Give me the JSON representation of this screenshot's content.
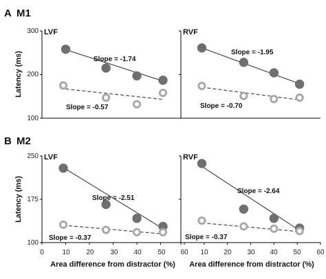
{
  "figure": {
    "xlabel": "Area difference from distractor (%)",
    "ylabel": "Latency (ms)",
    "x_ticks": [
      "0",
      "10",
      "20",
      "30",
      "40",
      "50",
      "60"
    ],
    "colors": {
      "filled": "#6f6f6f",
      "open_ring": "#a9a9a9",
      "line": "#555555",
      "axis": "#000000"
    }
  },
  "rows": [
    {
      "letter": "A",
      "title": "M1",
      "y_ticks": [
        "300",
        "200",
        "100"
      ]
    },
    {
      "letter": "B",
      "title": "M2",
      "y_ticks": [
        "250",
        "175",
        "100"
      ]
    }
  ],
  "chart_data": [
    {
      "type": "scatter",
      "panel": "A M1 LVF",
      "title": "LVF",
      "xlim": [
        0,
        60
      ],
      "ylim": [
        100,
        300
      ],
      "series": [
        {
          "marker": "filled",
          "line": "solid",
          "x": [
            10,
            27,
            40,
            51
          ],
          "y": [
            258,
            215,
            197,
            187
          ],
          "fit": [
            [
              10,
              257
            ],
            [
              51,
              185
            ]
          ],
          "slope_label": "Slope = -1.74"
        },
        {
          "marker": "open",
          "line": "dashed",
          "x": [
            9,
            27,
            40,
            51
          ],
          "y": [
            175,
            147,
            132,
            158
          ],
          "fit": [
            [
              10,
              167
            ],
            [
              51,
              143
            ]
          ],
          "slope_label": "Slope = -0.57"
        }
      ]
    },
    {
      "type": "scatter",
      "panel": "A M1 RVF",
      "title": "RVF",
      "xlim": [
        0,
        60
      ],
      "ylim": [
        100,
        300
      ],
      "series": [
        {
          "marker": "filled",
          "line": "solid",
          "x": [
            9,
            27,
            40,
            51
          ],
          "y": [
            261,
            228,
            204,
            178
          ],
          "fit": [
            [
              9,
              261
            ],
            [
              51,
              179
            ]
          ],
          "slope_label": "Slope = -1.95"
        },
        {
          "marker": "open",
          "line": "dashed",
          "x": [
            9,
            27,
            40,
            51
          ],
          "y": [
            174,
            151,
            144,
            147
          ],
          "fit": [
            [
              9,
              171
            ],
            [
              51,
              142
            ]
          ],
          "slope_label": "Slope = -0.70"
        }
      ]
    },
    {
      "type": "scatter",
      "panel": "B M2 LVF",
      "title": "LVF",
      "xlim": [
        0,
        60
      ],
      "ylim": [
        100,
        250
      ],
      "series": [
        {
          "marker": "filled",
          "line": "solid",
          "x": [
            9,
            27,
            40,
            51
          ],
          "y": [
            229,
            166,
            142,
            128
          ],
          "fit": [
            [
              9,
              230
            ],
            [
              51,
              124
            ]
          ],
          "slope_label": "Slope = -2.51"
        },
        {
          "marker": "open",
          "line": "dashed",
          "x": [
            9,
            27,
            40,
            51
          ],
          "y": [
            131,
            122,
            118,
            118
          ],
          "fit": [
            [
              9,
              130
            ],
            [
              51,
              115
            ]
          ],
          "slope_label": "Slope = -0.37"
        }
      ]
    },
    {
      "type": "scatter",
      "panel": "B M2 RVF",
      "title": "RVF",
      "xlim": [
        0,
        60
      ],
      "ylim": [
        100,
        250
      ],
      "series": [
        {
          "marker": "filled",
          "line": "solid",
          "x": [
            9,
            27,
            40,
            51
          ],
          "y": [
            237,
            158,
            142,
            125
          ],
          "fit": [
            [
              9,
              232
            ],
            [
              51,
              121
            ]
          ],
          "slope_label": "Slope = -2.64"
        },
        {
          "marker": "open",
          "line": "dashed",
          "x": [
            9,
            27,
            40,
            51
          ],
          "y": [
            138,
            128,
            124,
            120
          ],
          "fit": [
            [
              9,
              134
            ],
            [
              51,
              119
            ]
          ],
          "slope_label": "Slope = -0.37"
        }
      ]
    }
  ]
}
